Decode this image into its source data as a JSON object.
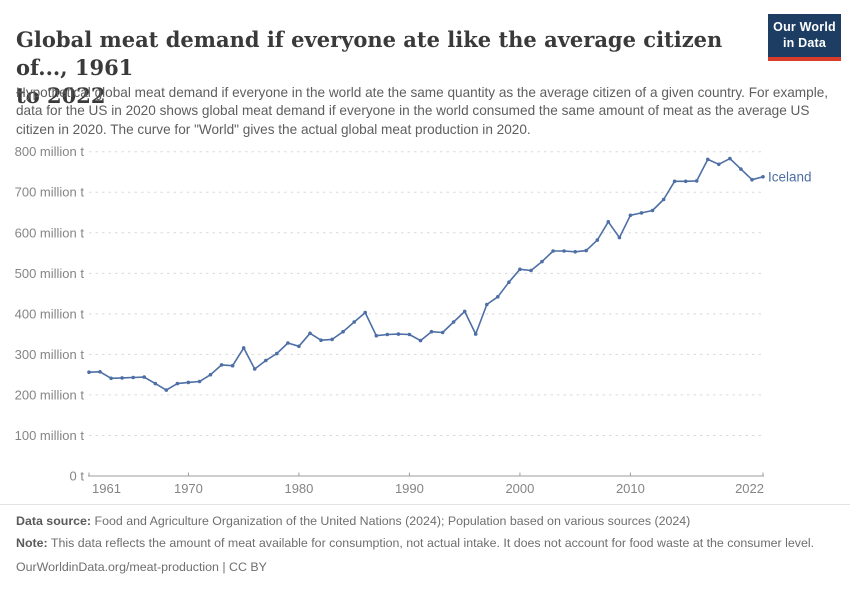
{
  "header": {
    "title": "Global meat demand if everyone ate like the average citizen of..., 1961 to 2022",
    "title_line1": "Global meat demand if everyone ate like the average citizen of..., 1961",
    "title_line2": "to 2022",
    "subtitle": "Hypothetical global meat demand if everyone in the world ate the same quantity as the average citizen of a given country. For example, data for the US in 2020 shows global meat demand if everyone in the world consumed the same amount of meat as the average US citizen in 2020. The curve for \"World\" gives the actual global meat production in 2020.",
    "logo": {
      "line1": "Our World",
      "line2": "in Data"
    }
  },
  "chart_data": {
    "type": "line",
    "title": "Global meat demand if everyone ate like the average citizen of..., 1961 to 2022",
    "xlabel": "",
    "ylabel": "",
    "unit": "million t",
    "xlim": [
      1961,
      2022
    ],
    "ylim": [
      0,
      800
    ],
    "grid": "horizontal-dashed",
    "legend_position": "end-of-line",
    "x_ticks": [
      1961,
      1970,
      1980,
      1990,
      2000,
      2010,
      2022
    ],
    "y_ticks": [
      {
        "value": 800,
        "label": "800 million t"
      },
      {
        "value": 700,
        "label": "700 million t"
      },
      {
        "value": 600,
        "label": "600 million t"
      },
      {
        "value": 500,
        "label": "500 million t"
      },
      {
        "value": 400,
        "label": "400 million t"
      },
      {
        "value": 300,
        "label": "300 million t"
      },
      {
        "value": 200,
        "label": "200 million t"
      },
      {
        "value": 100,
        "label": "100 million t"
      },
      {
        "value": 0,
        "label": "0 t"
      }
    ],
    "series": [
      {
        "name": "Iceland",
        "color": "#4d6fa5",
        "x": [
          1961,
          1962,
          1963,
          1964,
          1965,
          1966,
          1967,
          1968,
          1969,
          1970,
          1971,
          1972,
          1973,
          1974,
          1975,
          1976,
          1977,
          1978,
          1979,
          1980,
          1981,
          1982,
          1983,
          1984,
          1985,
          1986,
          1987,
          1988,
          1989,
          1990,
          1991,
          1992,
          1993,
          1994,
          1995,
          1996,
          1997,
          1998,
          1999,
          2000,
          2001,
          2002,
          2003,
          2004,
          2005,
          2006,
          2007,
          2008,
          2009,
          2010,
          2011,
          2012,
          2013,
          2014,
          2015,
          2016,
          2017,
          2018,
          2019,
          2020,
          2021,
          2022
        ],
        "values": [
          256,
          257,
          241,
          242,
          243,
          244,
          228,
          212,
          228,
          231,
          233,
          250,
          274,
          272,
          316,
          264,
          285,
          302,
          328,
          320,
          352,
          335,
          337,
          356,
          380,
          403,
          346,
          349,
          350,
          349,
          334,
          356,
          354,
          380,
          406,
          350,
          423,
          442,
          478,
          510,
          507,
          529,
          555,
          555,
          553,
          556,
          582,
          627,
          588,
          643,
          649,
          655,
          682,
          727,
          727,
          728,
          781,
          769,
          783,
          757,
          731,
          738
        ]
      }
    ]
  },
  "footer": {
    "datasource_label": "Data source:",
    "datasource_text": " Food and Agriculture Organization of the United Nations (2024); Population based on various sources (2024)",
    "note_label": "Note:",
    "note_text": " This data reflects the amount of meat available for consumption, not actual intake. It does not account for food waste at the consumer level.",
    "citation": "OurWorldinData.org/meat-production | CC BY"
  },
  "colors": {
    "line": "#4d6fa5",
    "end_label": "#4d6fa5",
    "gridline": "#dadada",
    "axis_baseline": "#9e9e9e",
    "axis_text": "#858585",
    "logo_bg": "#1d3d63",
    "logo_red": "#d93b2b",
    "title_text": "#3a3a3a"
  }
}
